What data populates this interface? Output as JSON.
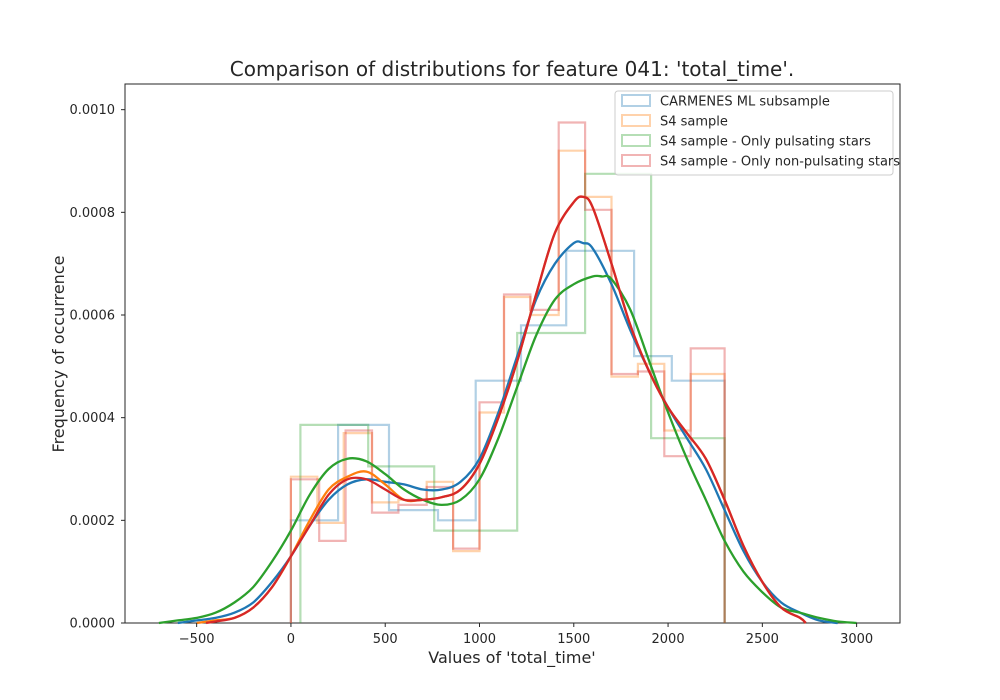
{
  "chart_data": {
    "type": "histogram_kde",
    "title": "Comparison of distributions for feature 041: 'total_time'.",
    "xlabel": "Values of 'total_time'",
    "ylabel": "Frequency of occurrence",
    "xlim": [
      -880,
      3230
    ],
    "ylim": [
      0,
      0.00105
    ],
    "xticks": [
      -500,
      0,
      500,
      1000,
      1500,
      2000,
      2500,
      3000
    ],
    "xtick_labels": [
      "−500",
      "0",
      "500",
      "1000",
      "1500",
      "2000",
      "2500",
      "3000"
    ],
    "yticks": [
      0,
      0.0002,
      0.0004,
      0.0006,
      0.0008,
      0.001
    ],
    "ytick_labels": [
      "0.0000",
      "0.0002",
      "0.0004",
      "0.0006",
      "0.0008",
      "0.0010"
    ],
    "grid": false,
    "legend_position": "top-right",
    "series": [
      {
        "name": "CARMENES ML subsample",
        "color": "#1f77b4",
        "hist_edges": [
          0,
          115,
          250,
          520,
          660,
          780,
          980,
          1220,
          1460,
          1580,
          1820,
          1920,
          2020,
          2300
        ],
        "hist_values": [
          0.0002,
          0.0002,
          0.000386,
          0.00022,
          0.00022,
          0.0002,
          0.000472,
          0.00058,
          0.000725,
          0.000725,
          0.00052,
          0.00052,
          0.000472
        ],
        "kde_x": [
          -600,
          -500,
          -400,
          -300,
          -200,
          -100,
          0,
          100,
          200,
          300,
          400,
          500,
          600,
          700,
          800,
          900,
          1000,
          1100,
          1200,
          1300,
          1400,
          1500,
          1550,
          1600,
          1700,
          1800,
          1900,
          2000,
          2100,
          2200,
          2300,
          2400,
          2500,
          2600,
          2700,
          2800,
          2900
        ],
        "kde_y": [
          0,
          5e-06,
          1e-05,
          2e-05,
          4e-05,
          8e-05,
          0.00013,
          0.00019,
          0.00024,
          0.00027,
          0.00028,
          0.000275,
          0.00027,
          0.00026,
          0.00026,
          0.000275,
          0.00032,
          0.00041,
          0.00052,
          0.00063,
          0.0007,
          0.00074,
          0.00074,
          0.00073,
          0.00066,
          0.00057,
          0.00049,
          0.00042,
          0.00036,
          0.0003,
          0.00022,
          0.00014,
          8e-05,
          4e-05,
          2e-05,
          5e-06,
          0
        ]
      },
      {
        "name": "S4 sample",
        "color": "#ff7f0e",
        "hist_edges": [
          0,
          140,
          280,
          430,
          570,
          720,
          860,
          1000,
          1130,
          1270,
          1420,
          1560,
          1700,
          1840,
          1980,
          2120,
          2300
        ],
        "hist_values": [
          0.000285,
          0.000195,
          0.00037,
          0.000235,
          0.00024,
          0.000275,
          0.00014,
          0.00041,
          0.000635,
          0.0006,
          0.00092,
          0.00083,
          0.00048,
          0.000505,
          0.000375,
          0.000485
        ],
        "kde_x": [
          -500,
          -400,
          -300,
          -200,
          -100,
          0,
          100,
          200,
          300,
          400,
          500,
          600,
          700,
          800,
          900,
          1000,
          1100,
          1200,
          1300,
          1400,
          1500,
          1550,
          1600,
          1700,
          1800,
          1900,
          2000,
          2100,
          2200,
          2300,
          2400,
          2500,
          2600,
          2700,
          2730
        ],
        "kde_y": [
          0,
          5e-06,
          1e-05,
          3e-05,
          7e-05,
          0.00013,
          0.0002,
          0.00026,
          0.000285,
          0.000295,
          0.00027,
          0.00024,
          0.00024,
          0.000245,
          0.00026,
          0.00031,
          0.0004,
          0.00051,
          0.00064,
          0.00076,
          0.00082,
          0.00083,
          0.00081,
          0.0007,
          0.00058,
          0.00049,
          0.00042,
          0.00037,
          0.00032,
          0.00024,
          0.00015,
          8e-05,
          3e-05,
          1e-05,
          0
        ]
      },
      {
        "name": "S4 sample - Only pulsating stars",
        "color": "#2ca02c",
        "hist_edges": [
          50,
          410,
          760,
          1200,
          1560,
          1910,
          2300
        ],
        "hist_values": [
          0.000386,
          0.000305,
          0.00018,
          0.000565,
          0.000875,
          0.00036
        ],
        "kde_x": [
          -700,
          -600,
          -500,
          -400,
          -300,
          -200,
          -100,
          0,
          100,
          200,
          300,
          400,
          500,
          600,
          700,
          800,
          900,
          1000,
          1100,
          1200,
          1300,
          1400,
          1500,
          1600,
          1650,
          1700,
          1800,
          1900,
          2000,
          2100,
          2200,
          2300,
          2400,
          2500,
          2600,
          2700,
          2800,
          2900,
          3000
        ],
        "kde_y": [
          0,
          5e-06,
          1e-05,
          2e-05,
          4e-05,
          7e-05,
          0.00012,
          0.00018,
          0.00025,
          0.0003,
          0.00032,
          0.000315,
          0.00029,
          0.00026,
          0.00024,
          0.00023,
          0.00024,
          0.00028,
          0.00036,
          0.00046,
          0.00056,
          0.00063,
          0.00066,
          0.000675,
          0.000675,
          0.00067,
          0.00061,
          0.00051,
          0.00041,
          0.00032,
          0.00024,
          0.00016,
          0.0001,
          6e-05,
          3e-05,
          2e-05,
          1e-05,
          3e-06,
          0
        ]
      },
      {
        "name": "S4 sample - Only non-pulsating stars",
        "color": "#d62728",
        "hist_edges": [
          0,
          150,
          290,
          430,
          570,
          720,
          860,
          1000,
          1130,
          1270,
          1420,
          1560,
          1700,
          1840,
          1980,
          2120,
          2300
        ],
        "hist_values": [
          0.00028,
          0.00016,
          0.000375,
          0.000215,
          0.00023,
          0.000265,
          0.000145,
          0.00043,
          0.00064,
          0.00061,
          0.000975,
          0.000805,
          0.000485,
          0.00049,
          0.000325,
          0.000535
        ],
        "kde_x": [
          -450,
          -400,
          -300,
          -200,
          -100,
          0,
          100,
          200,
          300,
          400,
          500,
          600,
          700,
          800,
          900,
          1000,
          1100,
          1200,
          1300,
          1400,
          1500,
          1550,
          1600,
          1700,
          1800,
          1900,
          2000,
          2100,
          2200,
          2300,
          2400,
          2500,
          2600,
          2700,
          2730
        ],
        "kde_y": [
          0,
          3e-06,
          1e-05,
          3e-05,
          7e-05,
          0.00013,
          0.00019,
          0.00025,
          0.00028,
          0.00028,
          0.00026,
          0.00024,
          0.00024,
          0.000245,
          0.00026,
          0.00031,
          0.0004,
          0.00051,
          0.00064,
          0.00076,
          0.00082,
          0.00083,
          0.00081,
          0.0007,
          0.00058,
          0.00049,
          0.00042,
          0.00037,
          0.00032,
          0.00024,
          0.00015,
          8e-05,
          3e-05,
          1e-05,
          0
        ]
      }
    ]
  }
}
